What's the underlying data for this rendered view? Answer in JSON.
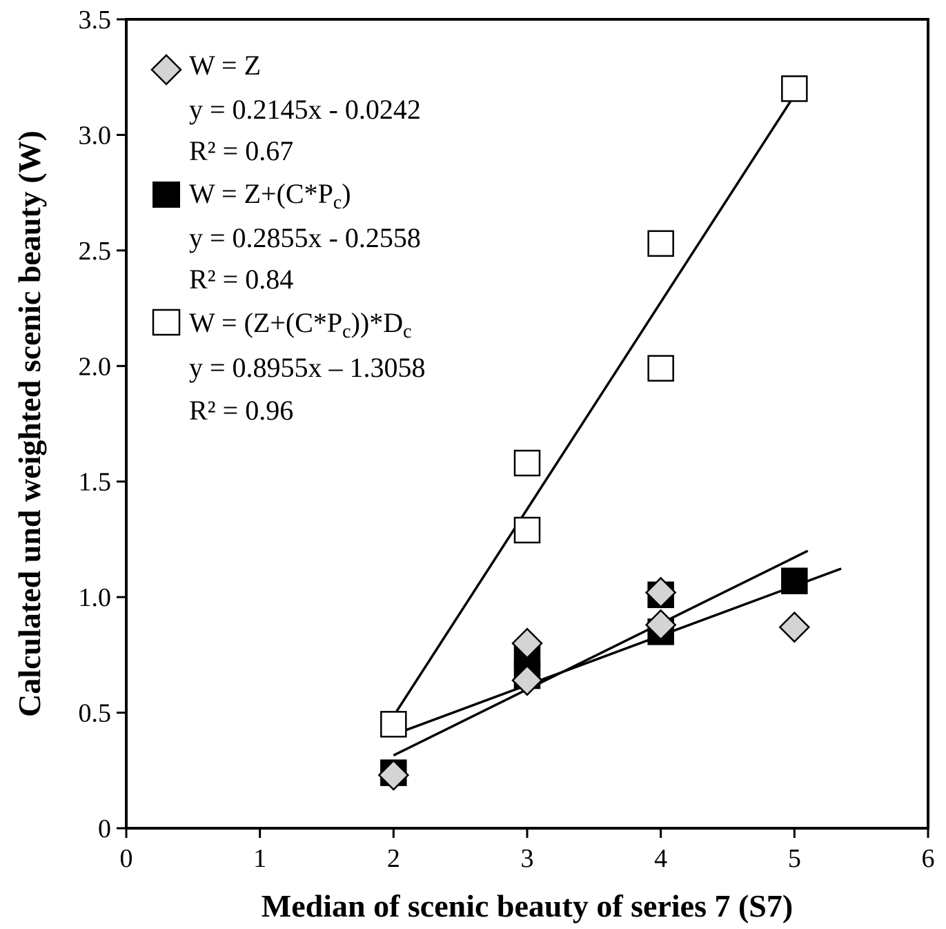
{
  "chart_data": {
    "type": "scatter",
    "xlabel": "Median of scenic beauty of series 7  (S7)",
    "ylabel": "Calculated und weighted scenic beauty  (W)",
    "xlim": [
      0,
      6
    ],
    "ylim": [
      0,
      3.5
    ],
    "x_ticks": [
      "0",
      "1",
      "2",
      "3",
      "4",
      "5",
      "6"
    ],
    "y_ticks": [
      "0",
      "0.5",
      "1.0",
      "1.5",
      "2.0",
      "2.5",
      "3.0",
      "3.5"
    ],
    "x_tick_values": [
      0,
      1,
      2,
      3,
      4,
      5,
      6
    ],
    "y_tick_values": [
      0,
      0.5,
      1.0,
      1.5,
      2.0,
      2.5,
      3.0,
      3.5
    ],
    "grid": false,
    "legend_position": "top-left",
    "series": [
      {
        "name": "W = Z",
        "marker": "diamond",
        "fill": "#d4d4d4",
        "points": [
          [
            2,
            0.23
          ],
          [
            3,
            0.8
          ],
          [
            3,
            0.64
          ],
          [
            4,
            1.02
          ],
          [
            4,
            0.88
          ],
          [
            5,
            0.87
          ]
        ],
        "equation": "y = 0.2145x  - 0.0242",
        "r2": "R² = 0.67",
        "trendline": {
          "slope": 0.2145,
          "intercept": -0.0242,
          "x_range": [
            2,
            5.35
          ]
        }
      },
      {
        "name": "W = Z+(C*Pc)",
        "name_main": "W = Z+(C*P",
        "name_sub": "c",
        "name_tail": ")",
        "marker": "square",
        "fill": "#000000",
        "points": [
          [
            2,
            0.24
          ],
          [
            3,
            0.75
          ],
          [
            3,
            0.66
          ],
          [
            4,
            1.01
          ],
          [
            4,
            0.85
          ],
          [
            5,
            1.07
          ]
        ],
        "equation": "y = 0.2855x  - 0.2558",
        "r2": "R² = 0.84",
        "trendline": {
          "slope": 0.2855,
          "intercept": -0.2558,
          "x_range": [
            2,
            5.1
          ]
        }
      },
      {
        "name": "W = (Z+(C*Pc))*Dc",
        "name_main": "W = (Z+(C*P",
        "name_sub": "c",
        "name_mid": "))*D",
        "name_sub2": "c",
        "marker": "square-open",
        "fill": "#ffffff",
        "points": [
          [
            2,
            0.45
          ],
          [
            3,
            1.58
          ],
          [
            3,
            1.29
          ],
          [
            4,
            2.53
          ],
          [
            4,
            1.99
          ],
          [
            5,
            3.2
          ]
        ],
        "equation": "y = 0.8955x  – 1.3058",
        "r2": "R² = 0.96",
        "trendline": {
          "slope": 0.8955,
          "intercept": -1.3058,
          "x_range": [
            2,
            5
          ]
        }
      }
    ]
  }
}
